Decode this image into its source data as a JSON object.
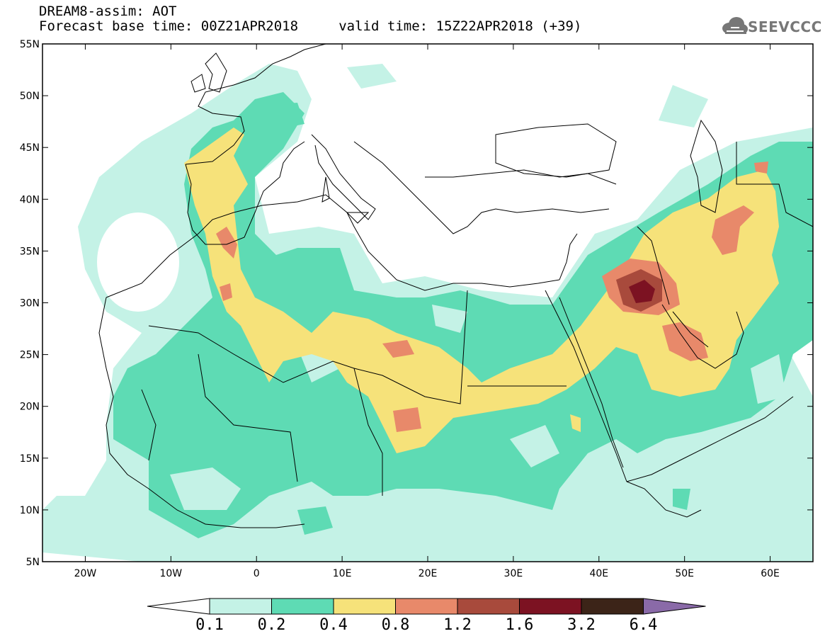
{
  "header": {
    "line1": "DREAM8-assim: AOT",
    "line2": "Forecast base time: 00Z21APR2018     valid time: 15Z22APR2018 (+39)"
  },
  "logo": {
    "text": "SEEVCCC",
    "icon": "cloud-icon"
  },
  "map": {
    "lon_range": [
      -25,
      65
    ],
    "lat_range": [
      5,
      55
    ],
    "lon_labels": [
      "20W",
      "10W",
      "0",
      "10E",
      "20E",
      "30E",
      "40E",
      "50E",
      "60E"
    ],
    "lat_labels": [
      "55N",
      "50N",
      "45N",
      "40N",
      "35N",
      "30N",
      "25N",
      "20N",
      "15N",
      "10N",
      "5N"
    ]
  },
  "colorbar": {
    "labels": [
      "0.1",
      "0.2",
      "0.4",
      "0.8",
      "1.2",
      "1.6",
      "3.2",
      "6.4"
    ],
    "colors": [
      "#c4f2e6",
      "#5edbb4",
      "#f6e27a",
      "#e8896a",
      "#a84a3c",
      "#7c1222",
      "#3c2418",
      "#8a6aa8"
    ]
  }
}
